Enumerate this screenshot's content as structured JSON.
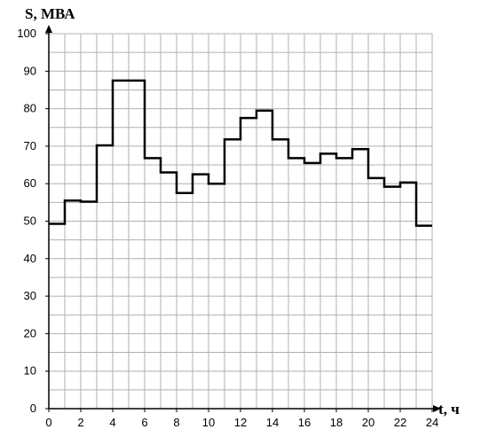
{
  "chart_data": {
    "type": "line",
    "step": true,
    "ylabel": "S, МВА",
    "xlabel": "t, ч",
    "xlim": [
      0,
      24
    ],
    "ylim": [
      0,
      100
    ],
    "x_ticks": [
      0,
      2,
      4,
      6,
      8,
      10,
      12,
      14,
      16,
      18,
      20,
      22,
      24
    ],
    "y_ticks": [
      0,
      10,
      20,
      30,
      40,
      50,
      60,
      70,
      80,
      90,
      100
    ],
    "grid": true,
    "x_grid_step": 1,
    "y_grid_step": 5,
    "series": [
      {
        "x": [
          0,
          1,
          2,
          3,
          4,
          5,
          6,
          7,
          8,
          9,
          10,
          11,
          12,
          13,
          14,
          15,
          16,
          17,
          18,
          19,
          20,
          21,
          22,
          23
        ],
        "values": [
          49.3,
          55.5,
          55.2,
          70.2,
          87.5,
          87.5,
          66.8,
          63.0,
          57.5,
          62.5,
          60.0,
          71.8,
          77.5,
          79.5,
          71.8,
          66.8,
          65.5,
          68.0,
          66.8,
          69.2,
          61.5,
          59.2,
          60.3,
          48.8
        ]
      }
    ],
    "colors": {
      "line": "#000000",
      "grid": "#b0b0b0",
      "axis": "#000000"
    }
  }
}
